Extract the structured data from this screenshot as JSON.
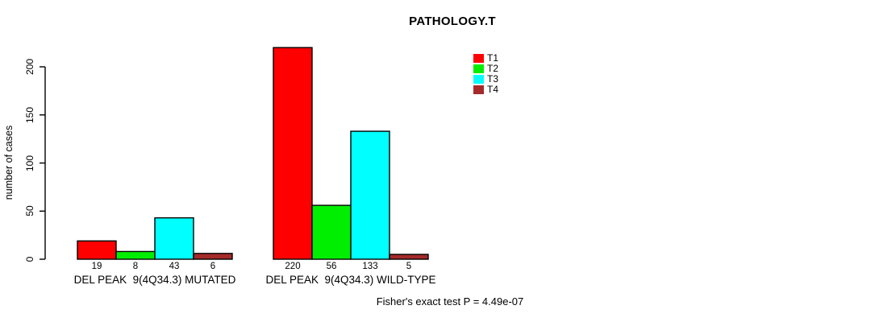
{
  "chart_data": {
    "type": "bar",
    "title": "PATHOLOGY.T",
    "ylabel": "number of cases",
    "ylim": [
      0,
      200
    ],
    "yticks": [
      0,
      50,
      100,
      150,
      200
    ],
    "grid": false,
    "legend_position": "top-right",
    "legend": [
      {
        "label": "T1",
        "color": "#FF0000"
      },
      {
        "label": "T2",
        "color": "#00EE00"
      },
      {
        "label": "T3",
        "color": "#00FFFF"
      },
      {
        "label": "T4",
        "color": "#A52A2A"
      }
    ],
    "series_colors": [
      "#FF0000",
      "#00EE00",
      "#00FFFF",
      "#A52A2A"
    ],
    "groups": [
      {
        "label": "DEL PEAK  9(4Q34.3) MUTATED",
        "values": [
          19,
          8,
          43,
          6
        ]
      },
      {
        "label": "DEL PEAK  9(4Q34.3) WILD-TYPE",
        "values": [
          220,
          56,
          133,
          5
        ]
      }
    ],
    "annotation": "Fisher's exact test P = 4.49e-07",
    "axis_color": "#000000",
    "bar_border_color": "#000000"
  }
}
